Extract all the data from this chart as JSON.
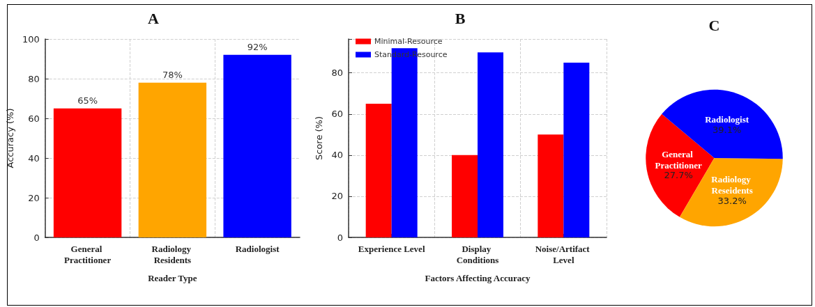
{
  "chart_data": [
    {
      "type": "bar",
      "title": "A",
      "xlabel": "Reader Type",
      "ylabel": "Accuracy (%)",
      "categories": [
        "General Practitioner",
        "Radiology Residents",
        "Radiologist"
      ],
      "values": [
        65,
        78,
        92
      ],
      "colors": [
        "#ff0000",
        "#ffa500",
        "#0000ff"
      ],
      "value_labels": [
        "65%",
        "78%",
        "92%"
      ],
      "ylim": [
        0,
        100
      ],
      "yticks": [
        0,
        20,
        40,
        60,
        80,
        100
      ],
      "grid": true
    },
    {
      "type": "bar",
      "title": "B",
      "xlabel": "Factors Affecting Accuracy",
      "ylabel": "Score (%)",
      "categories": [
        "Experience Level",
        "Display Conditions",
        "Noise/Artifact Level"
      ],
      "series": [
        {
          "name": "Minimal-Resource",
          "color": "#ff0000",
          "values": [
            65,
            40,
            50
          ]
        },
        {
          "name": "Standard-Resource",
          "color": "#0000ff",
          "values": [
            92,
            90,
            85
          ]
        }
      ],
      "ylim": [
        0,
        96.5
      ],
      "yticks": [
        0,
        20,
        40,
        60,
        80
      ],
      "grid": true,
      "legend": "top left"
    },
    {
      "type": "pie",
      "title": "C",
      "categories": [
        "General Practitioner",
        "Radiology Reseidents",
        "Radiologist"
      ],
      "values": [
        27.7,
        33.2,
        39.1
      ],
      "colors": [
        "#ff0000",
        "#ffa500",
        "#0000ff"
      ],
      "value_labels": [
        "27.7%",
        "33.2%",
        "39.1%"
      ]
    }
  ]
}
